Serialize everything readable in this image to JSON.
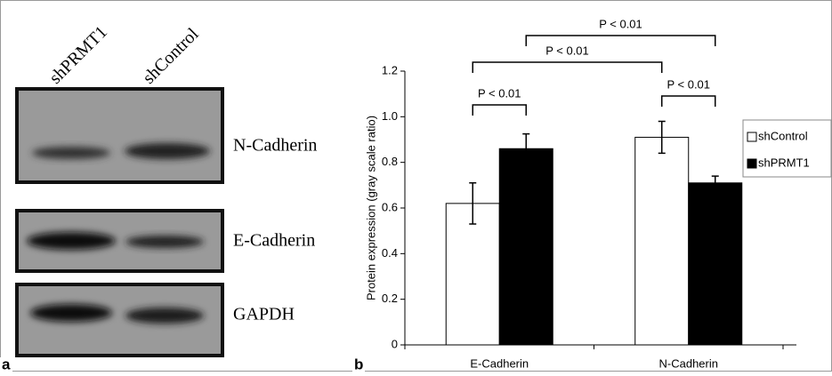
{
  "panel_a": {
    "letter": "a",
    "lanes": [
      "shPRMT1",
      "shControl"
    ],
    "bands": [
      "N-Cadherin",
      "E-Cadherin",
      "GAPDH"
    ]
  },
  "chart_data": {
    "type": "bar",
    "letter": "b",
    "ylabel": "Protein expression (gray scale ratio)",
    "categories": [
      "E-Cadherin",
      "N-Cadherin"
    ],
    "series": [
      {
        "name": "shControl",
        "color": "#ffffff",
        "values": [
          0.62,
          0.91
        ],
        "errors": [
          0.09,
          0.07
        ]
      },
      {
        "name": "shPRMT1",
        "color": "#000000",
        "values": [
          0.86,
          0.71
        ],
        "errors": [
          0.065,
          0.03
        ]
      }
    ],
    "ylim": [
      0,
      1.2
    ],
    "yticks": [
      0,
      0.2,
      0.4,
      0.6,
      0.8,
      {
        "value": 1,
        "label": "1.0"
      },
      1.2
    ],
    "annotations": [
      "P < 0.01",
      "P < 0.01",
      "P < 0.01",
      "P < 0.01"
    ],
    "legend": "right"
  }
}
